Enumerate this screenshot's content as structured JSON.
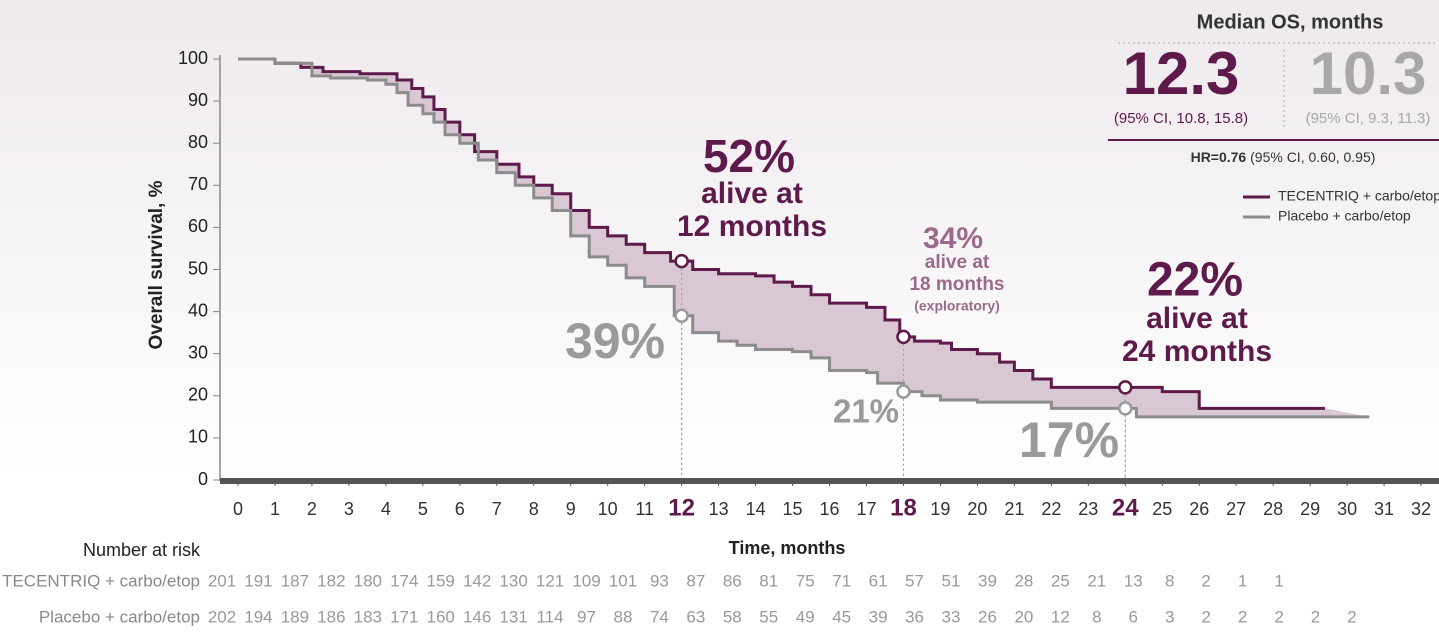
{
  "chart_data": {
    "type": "step",
    "ylabel": "Overall survival, %",
    "xlabel": "Time, months",
    "ylim": [
      0,
      100
    ],
    "yticks": [
      0,
      10,
      20,
      30,
      40,
      50,
      60,
      70,
      80,
      90,
      100
    ],
    "xlim": [
      0,
      32
    ],
    "xticks": [
      0,
      1,
      2,
      3,
      4,
      5,
      6,
      7,
      8,
      9,
      10,
      11,
      12,
      13,
      14,
      15,
      16,
      17,
      18,
      19,
      20,
      21,
      22,
      23,
      24,
      25,
      26,
      27,
      28,
      29,
      30,
      31,
      32
    ],
    "highlight_xticks": [
      12,
      18,
      24
    ],
    "fill_between": "#d9c8d3",
    "series": [
      {
        "name": "TECENTRIQ + carbo/etop",
        "color": "#5e1a4a",
        "x": [
          0,
          1,
          1.7,
          2.3,
          3.3,
          4.3,
          4.7,
          5,
          5.3,
          5.6,
          6,
          6.4,
          7,
          7.6,
          8,
          8.5,
          9,
          9.5,
          10,
          10.5,
          11,
          11.7,
          12.3,
          13,
          14,
          14.5,
          15,
          15.5,
          16,
          17,
          17.5,
          17.9,
          18.3,
          19,
          19.3,
          20,
          20.6,
          21,
          21.5,
          22,
          25,
          26,
          29.4
        ],
        "values": [
          100,
          99,
          98,
          97,
          96.5,
          95,
          93,
          91,
          88,
          85,
          82,
          78,
          75,
          72,
          70,
          68,
          64,
          60,
          58,
          56,
          54,
          52,
          50,
          49,
          48.5,
          47,
          46,
          44,
          42,
          41,
          38,
          34,
          33,
          32.5,
          31,
          30,
          28,
          26,
          24,
          22,
          21,
          17,
          17
        ]
      },
      {
        "name": "Placebo + carbo/etop",
        "color": "#8c8c8c",
        "x": [
          0,
          1,
          2,
          2.5,
          3.5,
          4,
          4.3,
          4.6,
          5,
          5.3,
          5.6,
          6,
          6.5,
          7,
          7.5,
          8,
          8.5,
          9,
          9.5,
          10,
          10.5,
          11,
          11.8,
          12.3,
          13,
          13.5,
          14,
          15,
          15.5,
          16,
          17,
          17.3,
          18,
          18.5,
          19,
          20,
          22,
          24.3,
          30.6
        ],
        "values": [
          100,
          99,
          96,
          95.5,
          95,
          94,
          92,
          89,
          87,
          85,
          82,
          80,
          76,
          73,
          70,
          67,
          64,
          58,
          53,
          51,
          48,
          46,
          39,
          35,
          33,
          32,
          31,
          30.5,
          29,
          26,
          25.5,
          23,
          21,
          20,
          19,
          18.5,
          17,
          15,
          15
        ]
      }
    ],
    "annotations": [
      {
        "x": 12,
        "value": 52,
        "label": "52%",
        "color": "#5e1a4a",
        "lines": [
          "alive at",
          "12 months"
        ]
      },
      {
        "x": 12,
        "value": 39,
        "label": "39%",
        "color": "#9a9a9a"
      },
      {
        "x": 18,
        "value": 34,
        "label": "34%",
        "color": "#9b6a8a",
        "lines": [
          "alive at",
          "18 months",
          "(exploratory)"
        ]
      },
      {
        "x": 18,
        "value": 21,
        "label": "21%",
        "color": "#9a9a9a"
      },
      {
        "x": 24,
        "value": 22,
        "label": "22%",
        "color": "#5e1a4a",
        "lines": [
          "alive at",
          "24 months"
        ]
      },
      {
        "x": 24,
        "value": 17,
        "label": "17%",
        "color": "#9a9a9a"
      }
    ],
    "median_box": {
      "title": "Median OS, months",
      "groups": [
        {
          "median": "12.3",
          "ci": "(95% CI, 10.8, 15.8)",
          "color": "#5e1a4a"
        },
        {
          "median": "10.3",
          "ci": "(95% CI, 9.3, 11.3)",
          "color": "#a8a8a8"
        }
      ],
      "hr": "HR=0.76",
      "hr_ci": "(95% CI, 0.60, 0.95)"
    },
    "risk_table": {
      "title": "Number at risk",
      "rows": [
        {
          "name": "TECENTRIQ + carbo/etop",
          "values": [
            201,
            191,
            187,
            182,
            180,
            174,
            159,
            142,
            130,
            121,
            109,
            101,
            93,
            87,
            86,
            81,
            75,
            71,
            61,
            57,
            51,
            39,
            28,
            25,
            21,
            13,
            8,
            2,
            1,
            1
          ]
        },
        {
          "name": "Placebo + carbo/etop",
          "values": [
            202,
            194,
            189,
            186,
            183,
            171,
            160,
            146,
            131,
            114,
            97,
            88,
            74,
            63,
            58,
            55,
            49,
            45,
            39,
            36,
            33,
            26,
            20,
            12,
            8,
            6,
            3,
            2,
            2,
            2,
            2,
            2
          ]
        }
      ]
    }
  }
}
